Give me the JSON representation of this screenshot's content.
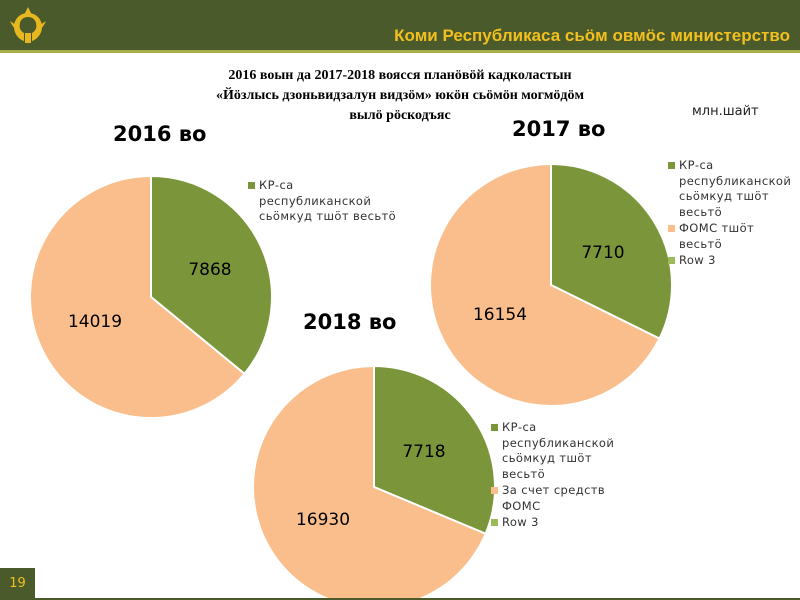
{
  "header": {
    "title": "Коми Республикаса сьӧм овмӧс министерство"
  },
  "page_number": "19",
  "colors": {
    "header_bg": "#4a5a2a",
    "header_text": "#f2c01e",
    "green_slice": "#7b963a",
    "orange_slice": "#f9be8b",
    "row3_swatch": "#9bbb59"
  },
  "main": {
    "title_line1": "2016 воын да 2017-2018 воясся планӧвӧй кадколастын",
    "title_line2": "«Йӧзлысь дзоньвидзалун видзӧм» юкӧн сьӧмӧн могмӧдӧм",
    "title_line3": "вылӧ рӧскодъяс",
    "unit": "млн.шайт"
  },
  "chart_data": [
    {
      "type": "pie",
      "title": "2016 во",
      "labels": [
        "КР-са республиканской сьӧмкуд тшӧт весьтӧ",
        ""
      ],
      "values": [
        7868,
        14019
      ],
      "legend": [
        "КР-са республиканской сьӧмкуд тшӧт весьтӧ"
      ]
    },
    {
      "type": "pie",
      "title": "2017 во",
      "labels": [
        "КР-са республиканской сьӧмкуд тшӧт весьтӧ",
        "ФОМС тшӧт весьтӧ"
      ],
      "values": [
        7710,
        16154
      ],
      "legend": [
        "КР-са республиканской сьӧмкуд тшӧт весьтӧ",
        "ФОМС тшӧт весьтӧ",
        "Row 3"
      ]
    },
    {
      "type": "pie",
      "title": "2018 во",
      "labels": [
        "КР-са республиканской сьӧмкуд тшӧт весьтӧ",
        "За счет средств ФОМС"
      ],
      "values": [
        7718,
        16930
      ],
      "legend": [
        "КР-са республиканской сьӧмкуд тшӧт весьтӧ",
        "За счет средств ФОМС",
        "Row 3"
      ]
    }
  ]
}
